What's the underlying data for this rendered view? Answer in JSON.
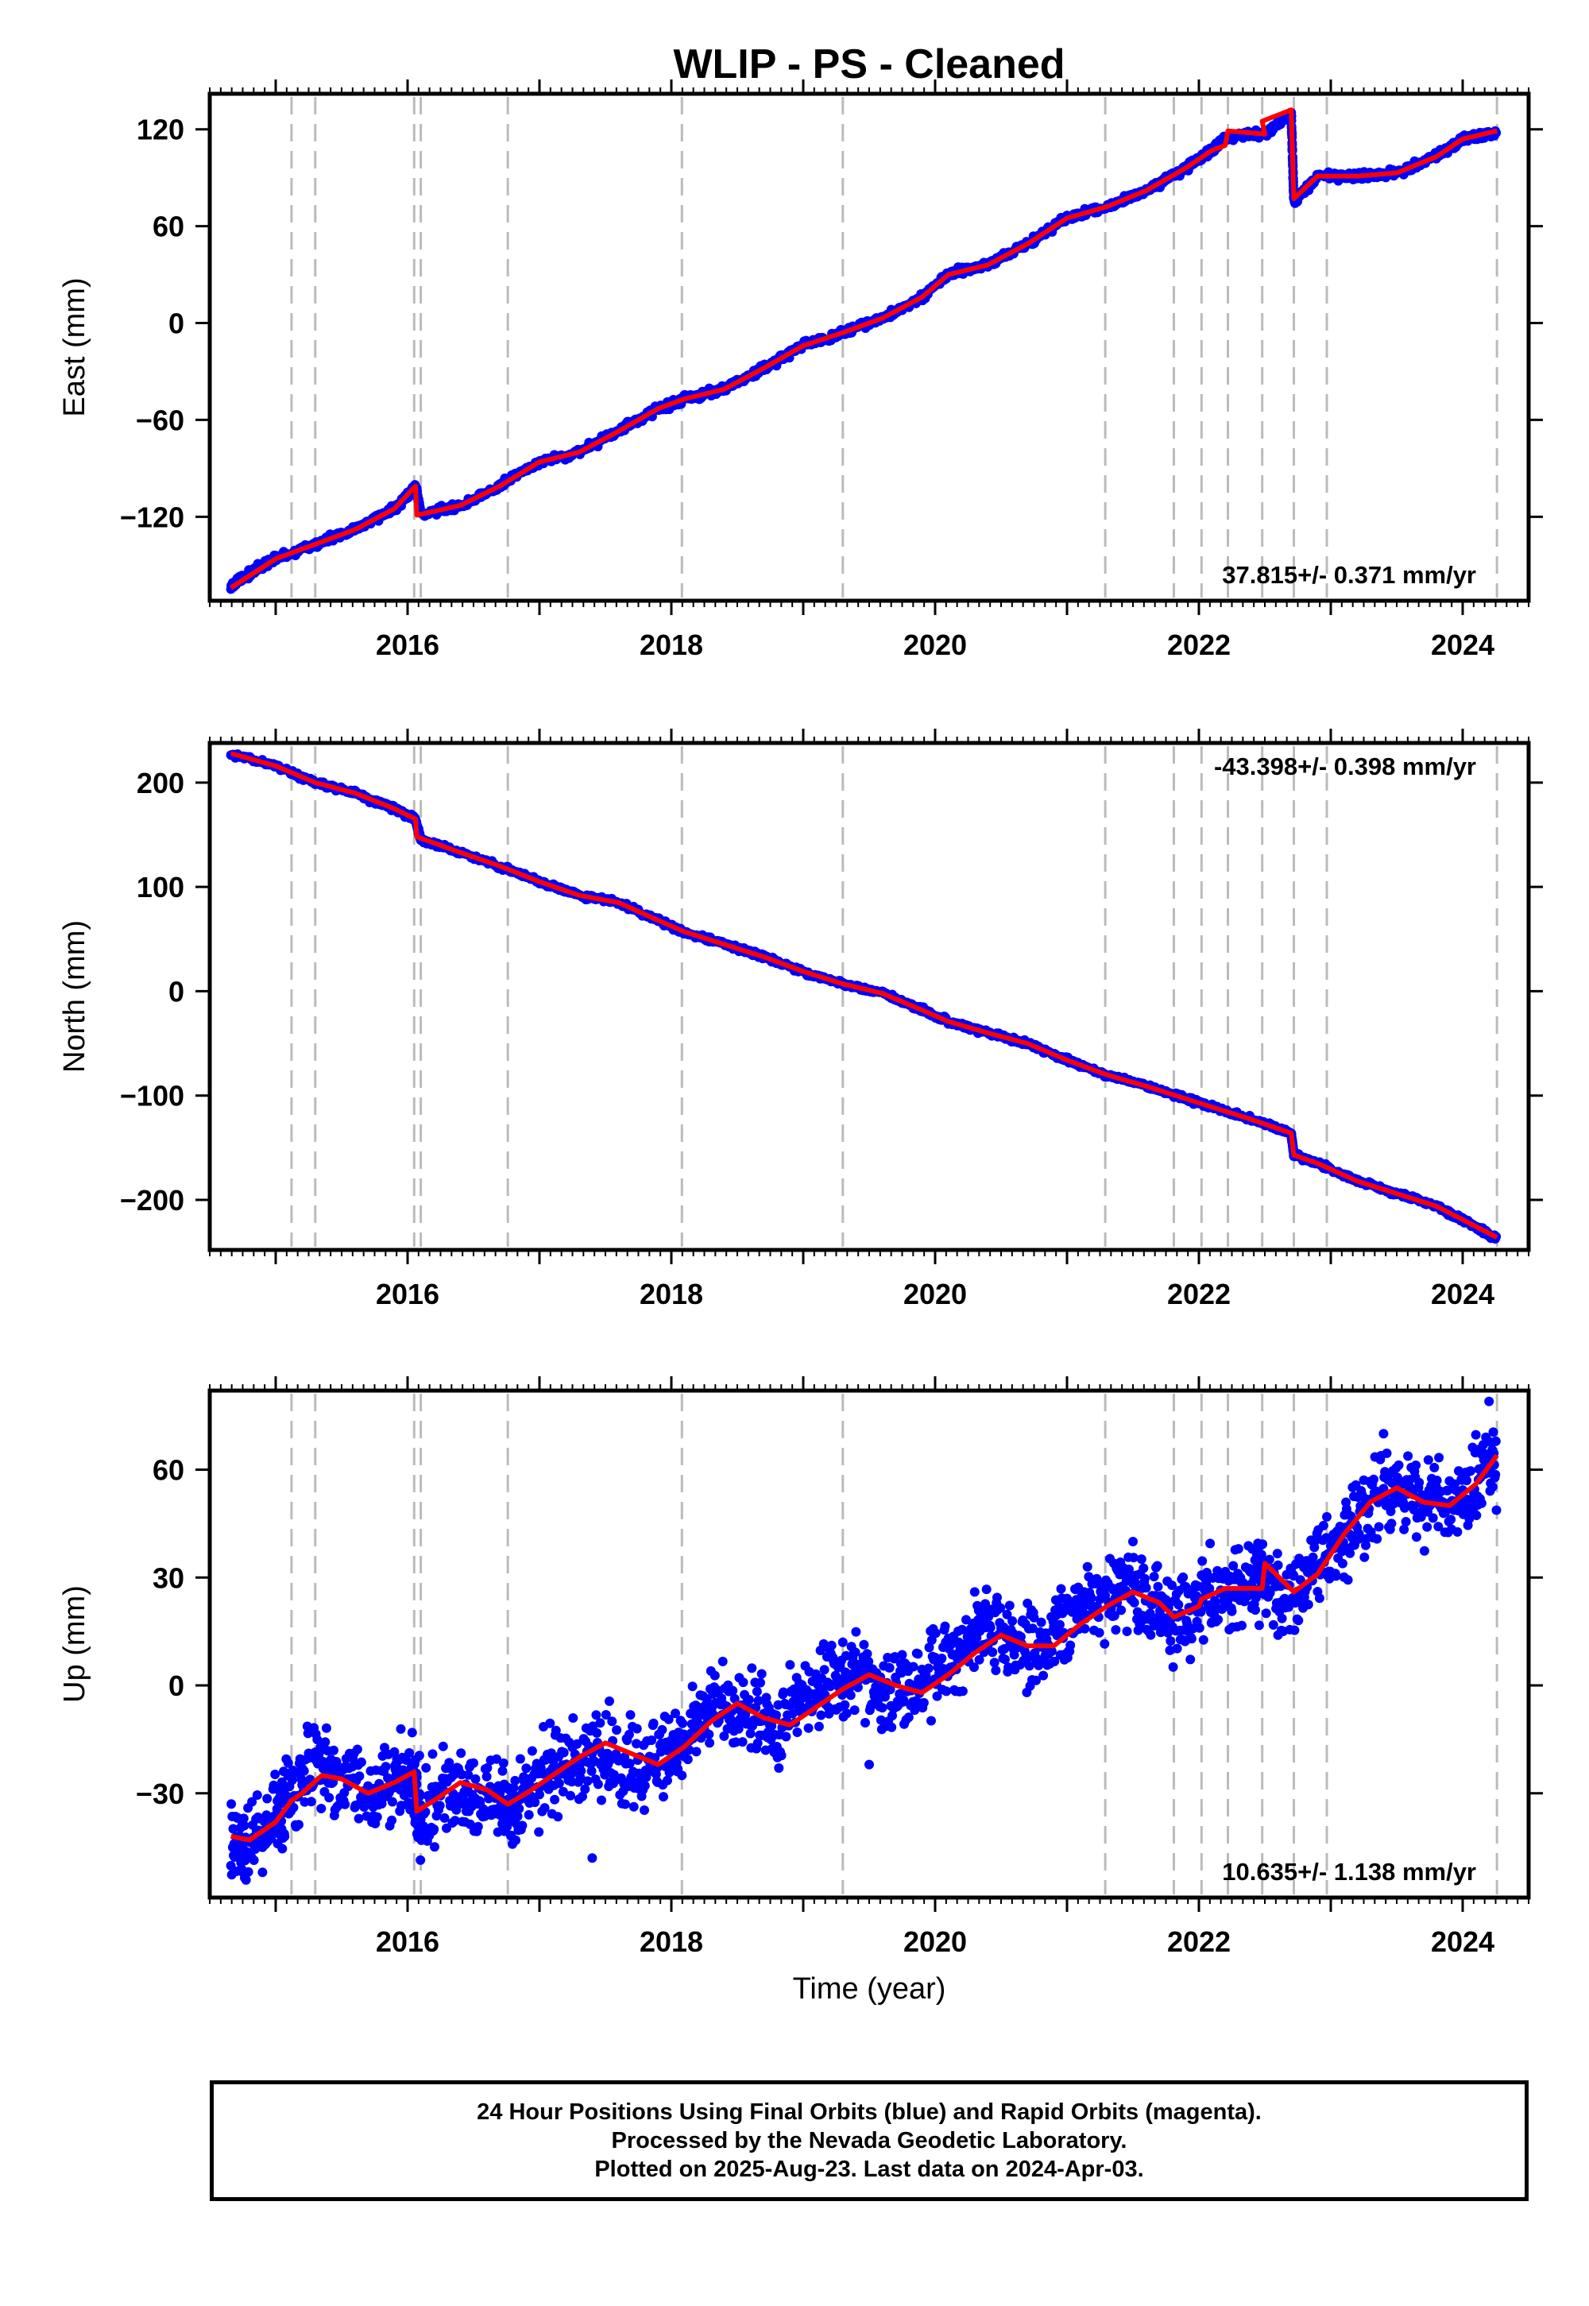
{
  "title": "WLIP  - PS - Cleaned",
  "colors": {
    "points": "#0000ff",
    "model": "#ff0000",
    "breaks": "#bbbbbb",
    "frame": "#000000"
  },
  "x_axis": {
    "label": "Time (year)",
    "ticks": [
      "2016",
      "2018",
      "2020",
      "2022",
      "2024"
    ],
    "range": [
      2014.5,
      2024.5
    ]
  },
  "break_years": [
    2015.12,
    2015.3,
    2016.05,
    2016.1,
    2016.76,
    2018.08,
    2019.3,
    2021.29,
    2021.81,
    2022.02,
    2022.22,
    2022.48,
    2022.72,
    2022.97,
    2024.26
  ],
  "footer": {
    "line1": "24 Hour Positions Using Final Orbits (blue) and Rapid Orbits (magenta).",
    "line2": "Processed by the Nevada Geodetic Laboratory.",
    "line3": "Plotted on 2025-Aug-23. Last data on 2024-Apr-03."
  },
  "chart_data": [
    {
      "type": "scatter",
      "panel": "east",
      "ylabel": "East (mm)",
      "ylim": [
        -172,
        142
      ],
      "yticks": [
        -120,
        -60,
        0,
        60,
        120
      ],
      "yticklabels": [
        "−120",
        "−60",
        "0",
        "60",
        "120"
      ],
      "xlabel": "",
      "rate_label": "37.815+/- 0.371 mm/yr",
      "rate_position": "bottom-right",
      "series": [
        {
          "name": "",
          "style": "points",
          "x": [
            2014.66,
            2014.8,
            2015.0,
            2015.3,
            2015.6,
            2015.9,
            2016.06,
            2016.1,
            2016.4,
            2016.7,
            2017.0,
            2017.3,
            2017.6,
            2017.9,
            2018.1,
            2018.4,
            2018.7,
            2019.0,
            2019.3,
            2019.6,
            2019.9,
            2020.1,
            2020.4,
            2020.7,
            2021.0,
            2021.3,
            2021.6,
            2021.9,
            2022.1,
            2022.2,
            2022.5,
            2022.7,
            2022.72,
            2022.9,
            2023.2,
            2023.5,
            2023.8,
            2024.0,
            2024.26
          ],
          "y": [
            -163,
            -155,
            -146,
            -137,
            -128,
            -115,
            -101,
            -118,
            -113,
            -101,
            -86,
            -80,
            -67,
            -53,
            -47,
            -41,
            -28,
            -14,
            -6,
            3,
            16,
            30,
            36,
            49,
            65,
            72,
            82,
            96,
            107,
            115,
            117,
            130,
            75,
            91,
            91,
            93,
            103,
            114,
            118
          ]
        },
        {
          "name": "",
          "style": "line",
          "x": [
            2014.66,
            2015.0,
            2015.3,
            2015.6,
            2015.9,
            2016.06,
            2016.07,
            2016.4,
            2016.7,
            2017.0,
            2017.3,
            2017.6,
            2017.9,
            2018.1,
            2018.4,
            2018.7,
            2019.0,
            2019.3,
            2019.6,
            2019.9,
            2020.1,
            2020.4,
            2020.7,
            2021.0,
            2021.3,
            2021.6,
            2021.9,
            2022.1,
            2022.2,
            2022.22,
            2022.5,
            2022.48,
            2022.7,
            2022.72,
            2022.9,
            2023.2,
            2023.5,
            2023.8,
            2024.0,
            2024.26
          ],
          "y": [
            -164,
            -146,
            -137,
            -128,
            -115,
            -101,
            -119,
            -113,
            -101,
            -86,
            -80,
            -67,
            -53,
            -47,
            -41,
            -28,
            -14,
            -6,
            3,
            16,
            30,
            36,
            49,
            65,
            72,
            82,
            96,
            107,
            110,
            119,
            117,
            125,
            132,
            77,
            91,
            91,
            93,
            103,
            114,
            119
          ]
        }
      ]
    },
    {
      "type": "scatter",
      "panel": "north",
      "ylabel": "North (mm)",
      "ylim": [
        -248,
        238
      ],
      "yticks": [
        -200,
        -100,
        0,
        100,
        200
      ],
      "yticklabels": [
        "−200",
        "−100",
        "0",
        "100",
        "200"
      ],
      "xlabel": "",
      "rate_label": "-43.398+/- 0.398 mm/yr",
      "rate_position": "top-right",
      "series": [
        {
          "name": "",
          "style": "points",
          "x": [
            2014.66,
            2015.0,
            2015.3,
            2015.6,
            2015.9,
            2016.06,
            2016.1,
            2016.4,
            2016.7,
            2017.0,
            2017.3,
            2017.6,
            2017.9,
            2018.1,
            2018.4,
            2018.7,
            2019.0,
            2019.3,
            2019.6,
            2019.9,
            2020.1,
            2020.4,
            2020.7,
            2021.0,
            2021.3,
            2021.6,
            2021.9,
            2022.1,
            2022.4,
            2022.7,
            2022.72,
            2022.9,
            2023.2,
            2023.5,
            2023.8,
            2024.0,
            2024.26
          ],
          "y": [
            228,
            216,
            200,
            190,
            175,
            165,
            145,
            133,
            120,
            105,
            92,
            85,
            68,
            57,
            45,
            33,
            19,
            7,
            -2,
            -18,
            -29,
            -40,
            -50,
            -66,
            -80,
            -91,
            -103,
            -111,
            -123,
            -136,
            -157,
            -165,
            -182,
            -194,
            -206,
            -219,
            -237
          ]
        },
        {
          "name": "",
          "style": "line",
          "x": [
            2014.66,
            2015.0,
            2015.3,
            2015.6,
            2015.9,
            2016.06,
            2016.07,
            2016.4,
            2016.7,
            2017.0,
            2017.3,
            2017.6,
            2017.9,
            2018.1,
            2018.4,
            2018.7,
            2019.0,
            2019.3,
            2019.6,
            2019.9,
            2020.1,
            2020.4,
            2020.7,
            2021.0,
            2021.3,
            2021.6,
            2021.9,
            2022.1,
            2022.4,
            2022.7,
            2022.72,
            2022.9,
            2023.2,
            2023.5,
            2023.8,
            2024.0,
            2024.26
          ],
          "y": [
            228,
            216,
            200,
            190,
            175,
            165,
            148,
            133,
            120,
            105,
            92,
            85,
            68,
            57,
            45,
            33,
            19,
            7,
            -2,
            -18,
            -29,
            -40,
            -50,
            -66,
            -80,
            -91,
            -103,
            -111,
            -123,
            -136,
            -157,
            -165,
            -182,
            -194,
            -206,
            -219,
            -236
          ]
        }
      ]
    },
    {
      "type": "scatter",
      "panel": "up",
      "ylabel": "Up (mm)",
      "ylim": [
        -59,
        82
      ],
      "yticks": [
        -30,
        0,
        30,
        60
      ],
      "yticklabels": [
        "−30",
        "0",
        "30",
        "60"
      ],
      "xlabel": "Time (year)",
      "rate_label": "10.635+/- 1.138 mm/yr",
      "rate_position": "bottom-right",
      "series": [
        {
          "name": "",
          "style": "points",
          "x": [
            2014.66,
            2014.8,
            2015.0,
            2015.1,
            2015.3,
            2015.5,
            2015.7,
            2015.9,
            2016.05,
            2016.1,
            2016.3,
            2016.5,
            2016.7,
            2016.8,
            2017.0,
            2017.2,
            2017.4,
            2017.6,
            2017.8,
            2018.0,
            2018.2,
            2018.4,
            2018.6,
            2018.8,
            2019.0,
            2019.2,
            2019.4,
            2019.6,
            2019.8,
            2020.0,
            2020.2,
            2020.4,
            2020.6,
            2020.8,
            2021.0,
            2021.2,
            2021.4,
            2021.6,
            2021.8,
            2022.0,
            2022.2,
            2022.4,
            2022.5,
            2022.7,
            2022.9,
            2023.1,
            2023.3,
            2023.5,
            2023.7,
            2023.9,
            2024.1,
            2024.26,
            2014.9,
            2016.2,
            2017.1,
            2017.4,
            2018.3,
            2019.3,
            2019.5,
            2020.3,
            2021.5,
            2022.6,
            2023.4,
            2024.2
          ],
          "y": [
            -43,
            -45,
            -38,
            -31,
            -22,
            -27,
            -31,
            -26,
            -25,
            -36,
            -27,
            -31,
            -33,
            -35,
            -27,
            -22,
            -16,
            -20,
            -24,
            -18,
            -11,
            -5,
            -9,
            -12,
            -4,
            3,
            2,
            -3,
            1,
            5,
            12,
            16,
            10,
            11,
            17,
            24,
            27,
            23,
            19,
            24,
            27,
            28,
            30,
            25,
            33,
            41,
            50,
            55,
            50,
            52,
            56,
            63,
            -52,
            -40,
            -23,
            -48,
            4,
            12,
            -22,
            26,
            40,
            14,
            70,
            79
          ]
        },
        {
          "name": "",
          "style": "line",
          "x": [
            2014.66,
            2014.8,
            2015.0,
            2015.12,
            2015.2,
            2015.35,
            2015.5,
            2015.7,
            2015.9,
            2016.05,
            2016.07,
            2016.2,
            2016.4,
            2016.6,
            2016.76,
            2016.9,
            2017.1,
            2017.3,
            2017.5,
            2017.7,
            2017.9,
            2018.1,
            2018.3,
            2018.5,
            2018.7,
            2018.9,
            2019.1,
            2019.3,
            2019.5,
            2019.7,
            2019.9,
            2020.1,
            2020.3,
            2020.5,
            2020.7,
            2020.9,
            2021.1,
            2021.3,
            2021.5,
            2021.7,
            2021.81,
            2022.0,
            2022.02,
            2022.2,
            2022.3,
            2022.48,
            2022.5,
            2022.72,
            2022.9,
            2023.1,
            2023.3,
            2023.5,
            2023.7,
            2023.9,
            2024.1,
            2024.26
          ],
          "y": [
            -42,
            -43,
            -38,
            -32,
            -30,
            -25,
            -26,
            -30,
            -27,
            -24,
            -35,
            -32,
            -27,
            -29,
            -33,
            -30,
            -25,
            -20,
            -16,
            -19,
            -22,
            -17,
            -10,
            -5,
            -9,
            -11,
            -6,
            -1,
            3,
            0,
            -2,
            3,
            9,
            14,
            11,
            11,
            17,
            22,
            26,
            23,
            19,
            22,
            24,
            27,
            27,
            27,
            34,
            26,
            31,
            42,
            51,
            55,
            51,
            50,
            56,
            64
          ]
        }
      ]
    }
  ]
}
